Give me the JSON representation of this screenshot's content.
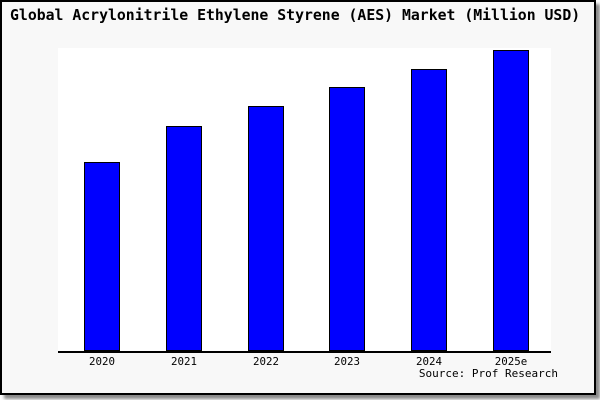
{
  "chart_data": {
    "type": "bar",
    "title": "Global Acrylonitrile Ethylene Styrene (AES) Market (Million USD)",
    "categories": [
      "2020",
      "2021",
      "2022",
      "2023",
      "2024",
      "2025e"
    ],
    "values": [
      189,
      225,
      245,
      264,
      282,
      301
    ],
    "values_note": "y-axis is unlabeled; values are relative bar heights read from pixels (max bar = 301)",
    "xlabel": "",
    "ylabel": "",
    "ylim": [
      0,
      303
    ],
    "grid": false,
    "legend": "none",
    "bar_color": "#0000ff",
    "bar_border_color": "#000000",
    "axis_color": "#000000",
    "plot_background": "#ffffff",
    "figure_background": "#f8f8f8"
  },
  "source": {
    "label": "Source: Prof Research"
  }
}
